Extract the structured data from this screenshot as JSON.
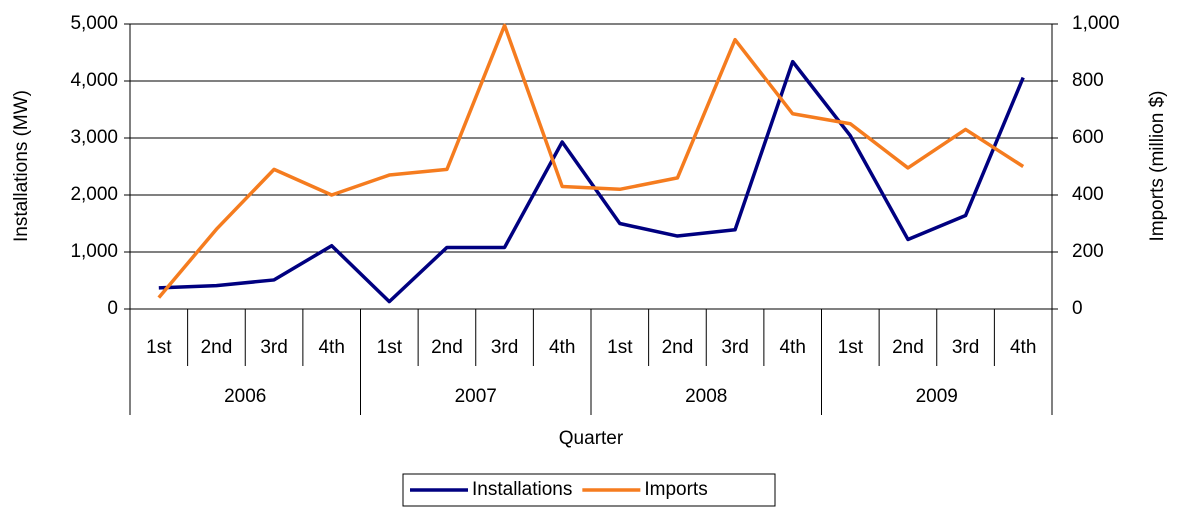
{
  "chart_data": {
    "type": "line",
    "categories": [
      "1st",
      "2nd",
      "3rd",
      "4th",
      "1st",
      "2nd",
      "3rd",
      "4th",
      "1st",
      "2nd",
      "3rd",
      "4th",
      "1st",
      "2nd",
      "3rd",
      "4th"
    ],
    "years": [
      "2006",
      "2007",
      "2008",
      "2009"
    ],
    "x_label": "Quarter",
    "y_label": "Installations (MW)",
    "y2_label": "Imports (million $)",
    "series": [
      {
        "name": "Installations",
        "color": "#000080",
        "values": [
          370,
          410,
          510,
          1110,
          130,
          1080,
          1080,
          2930,
          1500,
          1280,
          1390,
          4340,
          3040,
          1220,
          1640,
          4060
        ]
      },
      {
        "name": "Imports",
        "color": "#f57c1f",
        "axis": "y2",
        "values": [
          40,
          280,
          490,
          400,
          470,
          490,
          995,
          430,
          420,
          460,
          945,
          685,
          650,
          495,
          630,
          500
        ]
      }
    ],
    "ylim": [
      0,
      5000
    ],
    "yticks": [
      0,
      {
        "value": 1000,
        "label": "1,000"
      },
      {
        "value": 2000,
        "label": "2,000"
      },
      {
        "value": 3000,
        "label": "3,000"
      },
      {
        "value": 4000,
        "label": "4,000"
      },
      {
        "value": 5000,
        "label": "5,000"
      }
    ],
    "y2lim": [
      0,
      1000
    ],
    "y2ticks": [
      0,
      200,
      400,
      600,
      800,
      {
        "value": 1000,
        "label": "1,000"
      }
    ],
    "grid": true,
    "legend": "bottom"
  }
}
